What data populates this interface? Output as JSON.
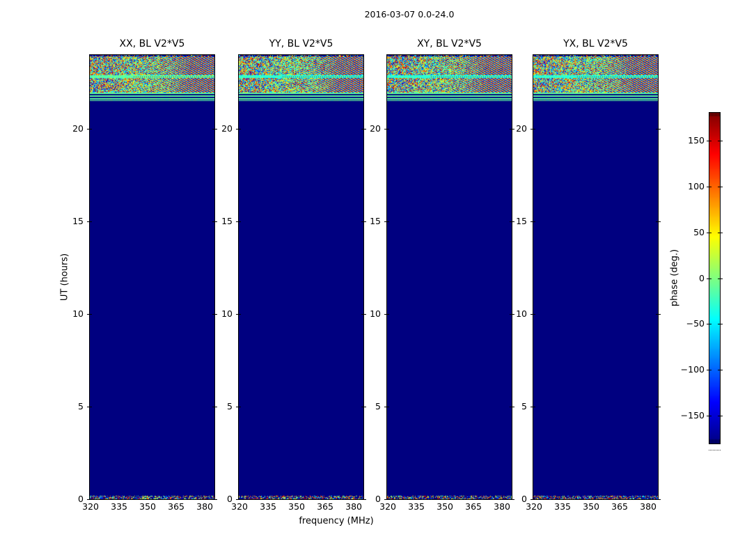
{
  "figure": {
    "title": "2016-03-07 0.0-24.0",
    "background_color": "#ffffff"
  },
  "chart_data": {
    "type": "heatmap",
    "subtype": "waterfall-spectrogram-grid",
    "colormap": "jet",
    "panels": [
      {
        "title": "XX, BL V2*V5",
        "seed": 3
      },
      {
        "title": "YY, BL V2*V5",
        "seed": 11
      },
      {
        "title": "XY, BL V2*V5",
        "seed": 23
      },
      {
        "title": "YX, BL V2*V5",
        "seed": 31
      }
    ],
    "xlabel": "frequency (MHz)",
    "ylabel": "UT (hours)",
    "x_ticks": [
      320,
      335,
      350,
      365,
      380
    ],
    "xlim": [
      319.6,
      385.1
    ],
    "y_ticks": [
      0,
      5,
      10,
      15,
      20
    ],
    "ylim": [
      0,
      24
    ],
    "colorbar": {
      "label": "phase (deg.)",
      "ticks": [
        150,
        100,
        50,
        0,
        -50,
        -100,
        -150
      ],
      "tick_labels": [
        "150",
        "100",
        "50",
        "0",
        "−50",
        "−100",
        "−150"
      ],
      "vmin": -180,
      "vmax": 180
    },
    "colors": {
      "flagged_background": "#000080",
      "stripe_green": "#6cff94",
      "frame": "#000000"
    },
    "bands": [
      {
        "from": 24.0,
        "to": 23.92,
        "kind": "sparse",
        "desc": "thin speckled row under top frame"
      },
      {
        "from": 23.92,
        "to": 22.92,
        "kind": "noise",
        "desc": "dense random phase noise with diagonal fringes"
      },
      {
        "from": 22.92,
        "to": 22.77,
        "kind": "stripe_red_dots",
        "desc": "light green/cyan stripe with dotted red line"
      },
      {
        "from": 22.77,
        "to": 21.98,
        "kind": "noise",
        "desc": "dense random phase noise with fringes"
      },
      {
        "from": 21.98,
        "to": 21.9,
        "kind": "stripe",
        "desc": "green stripe"
      },
      {
        "from": 21.83,
        "to": 21.75,
        "kind": "stripe",
        "desc": "green stripe"
      },
      {
        "from": 21.68,
        "to": 21.6,
        "kind": "stripe",
        "desc": "green stripe"
      },
      {
        "from": 21.55,
        "to": 21.51,
        "kind": "stripe",
        "desc": "thin green stripe"
      },
      {
        "from": 0.18,
        "to": 0.0,
        "kind": "sparse_dense",
        "desc": "speckled noise strip above bottom frame"
      }
    ]
  }
}
